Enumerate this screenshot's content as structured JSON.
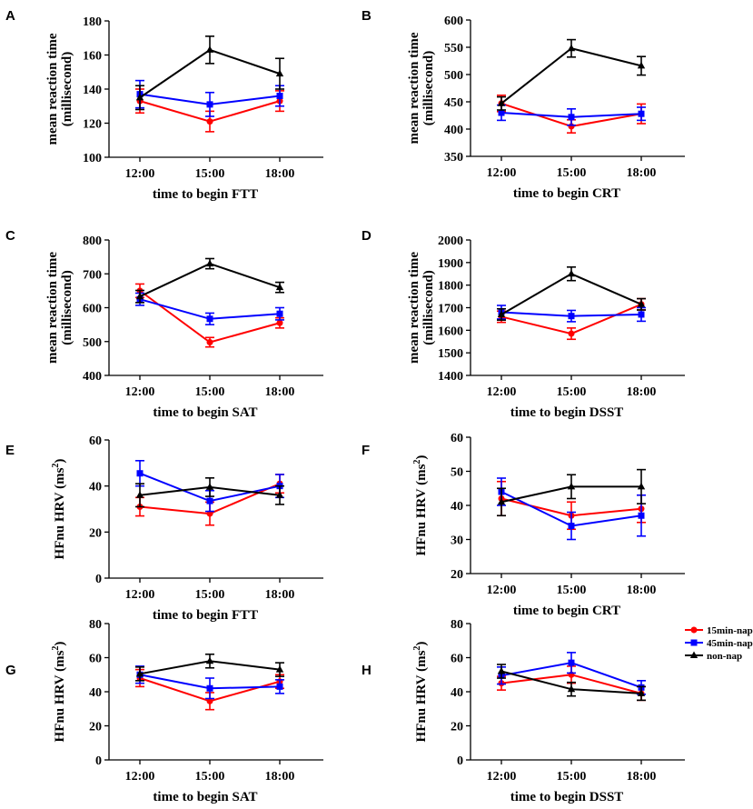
{
  "series_style": [
    {
      "name": "15min-nap",
      "color": "#ff0000",
      "marker": "circle"
    },
    {
      "name": "45min-nap",
      "color": "#0000ff",
      "marker": "square"
    },
    {
      "name": "non-nap",
      "color": "#000000",
      "marker": "triangle"
    }
  ],
  "chart_data": [
    {
      "panel": "A",
      "type": "line",
      "title": "",
      "categories": [
        "12:00",
        "15:00",
        "18:00"
      ],
      "xlabel": "time to begin FTT",
      "ylabel": [
        "mean reaction time",
        "(millisecond)"
      ],
      "ylim": [
        100,
        180
      ],
      "yticks": [
        100,
        120,
        140,
        160,
        180
      ],
      "series": [
        {
          "name": "15min-nap",
          "values": [
            133,
            121,
            133
          ],
          "errors": [
            7,
            6,
            6
          ]
        },
        {
          "name": "45min-nap",
          "values": [
            137,
            131,
            136
          ],
          "errors": [
            8,
            7,
            6
          ]
        },
        {
          "name": "non-nap",
          "values": [
            135,
            163,
            149
          ],
          "errors": [
            7,
            8,
            9
          ]
        }
      ]
    },
    {
      "panel": "B",
      "type": "line",
      "title": "",
      "categories": [
        "12:00",
        "15:00",
        "18:00"
      ],
      "xlabel": "time to begin CRT",
      "ylabel": [
        "mean reaction time",
        "(millisecond)"
      ],
      "ylim": [
        350,
        600
      ],
      "yticks": [
        350,
        400,
        450,
        500,
        550,
        600
      ],
      "series": [
        {
          "name": "15min-nap",
          "values": [
            447,
            405,
            428
          ],
          "errors": [
            15,
            12,
            18
          ]
        },
        {
          "name": "45min-nap",
          "values": [
            430,
            422,
            428
          ],
          "errors": [
            14,
            15,
            12
          ]
        },
        {
          "name": "non-nap",
          "values": [
            447,
            548,
            516
          ],
          "errors": [
            12,
            16,
            17
          ]
        }
      ]
    },
    {
      "panel": "C",
      "type": "line",
      "title": "",
      "categories": [
        "12:00",
        "15:00",
        "18:00"
      ],
      "xlabel": "time to begin SAT",
      "ylabel": [
        "mean reaction time",
        "(millisecond)"
      ],
      "ylim": [
        400,
        800
      ],
      "yticks": [
        400,
        500,
        600,
        700,
        800
      ],
      "series": [
        {
          "name": "15min-nap",
          "values": [
            650,
            498,
            555
          ],
          "errors": [
            20,
            14,
            15
          ]
        },
        {
          "name": "45min-nap",
          "values": [
            625,
            567,
            582
          ],
          "errors": [
            18,
            17,
            18
          ]
        },
        {
          "name": "non-nap",
          "values": [
            633,
            730,
            660
          ],
          "errors": [
            18,
            15,
            15
          ]
        }
      ]
    },
    {
      "panel": "D",
      "type": "line",
      "title": "",
      "categories": [
        "12:00",
        "15:00",
        "18:00"
      ],
      "xlabel": "time to begin DSST",
      "ylabel": [
        "mean reaction time",
        "(millisecond)"
      ],
      "ylim": [
        1400,
        2000
      ],
      "yticks": [
        1400,
        1500,
        1600,
        1700,
        1800,
        1900,
        2000
      ],
      "series": [
        {
          "name": "15min-nap",
          "values": [
            1660,
            1585,
            1715
          ],
          "errors": [
            25,
            25,
            25
          ]
        },
        {
          "name": "45min-nap",
          "values": [
            1680,
            1663,
            1670
          ],
          "errors": [
            30,
            25,
            30
          ]
        },
        {
          "name": "non-nap",
          "values": [
            1670,
            1850,
            1715
          ],
          "errors": [
            25,
            30,
            25
          ]
        }
      ]
    },
    {
      "panel": "E",
      "type": "line",
      "title": "",
      "categories": [
        "12:00",
        "15:00",
        "18:00"
      ],
      "xlabel": "time to begin FTT",
      "ylabel": [
        "HFnu HRV (ms",
        "2",
        ")"
      ],
      "ylim": [
        0,
        60
      ],
      "yticks": [
        0,
        20,
        40,
        60
      ],
      "series": [
        {
          "name": "15min-nap",
          "values": [
            31,
            28,
            41
          ],
          "errors": [
            4,
            5,
            4
          ]
        },
        {
          "name": "45min-nap",
          "values": [
            45.5,
            33.5,
            40
          ],
          "errors": [
            5.5,
            4.5,
            5
          ]
        },
        {
          "name": "non-nap",
          "values": [
            36,
            39.5,
            36
          ],
          "errors": [
            5,
            4,
            4
          ]
        }
      ]
    },
    {
      "panel": "F",
      "type": "line",
      "title": "",
      "categories": [
        "12:00",
        "15:00",
        "18:00"
      ],
      "xlabel": "time to begin CRT",
      "ylabel": [
        "HFnu HRV (ms",
        "2",
        ")"
      ],
      "ylim": [
        20,
        60
      ],
      "yticks": [
        20,
        30,
        40,
        50,
        60
      ],
      "series": [
        {
          "name": "15min-nap",
          "values": [
            42,
            37,
            39
          ],
          "errors": [
            5,
            4,
            4
          ]
        },
        {
          "name": "45min-nap",
          "values": [
            44,
            34,
            37
          ],
          "errors": [
            4,
            4,
            6
          ]
        },
        {
          "name": "non-nap",
          "values": [
            41,
            45.5,
            45.5
          ],
          "errors": [
            4,
            3.5,
            5
          ]
        }
      ]
    },
    {
      "panel": "G",
      "type": "line",
      "title": "",
      "categories": [
        "12:00",
        "15:00",
        "18:00"
      ],
      "xlabel": "time to begin SAT",
      "ylabel": [
        "HFnu HRV (ms",
        "2",
        ")"
      ],
      "ylim": [
        0,
        80
      ],
      "yticks": [
        0,
        20,
        40,
        60,
        80
      ],
      "series": [
        {
          "name": "15min-nap",
          "values": [
            48,
            34.5,
            46
          ],
          "errors": [
            5,
            5,
            4
          ]
        },
        {
          "name": "45min-nap",
          "values": [
            50,
            42,
            43
          ],
          "errors": [
            5,
            6,
            4
          ]
        },
        {
          "name": "non-nap",
          "values": [
            50.5,
            58,
            53
          ],
          "errors": [
            4,
            4,
            4
          ]
        }
      ]
    },
    {
      "panel": "H",
      "type": "line",
      "title": "",
      "categories": [
        "12:00",
        "15:00",
        "18:00"
      ],
      "xlabel": "time to begin DSST",
      "ylabel": [
        "HFnu HRV (ms",
        "2",
        ")"
      ],
      "ylim": [
        0,
        80
      ],
      "yticks": [
        0,
        20,
        40,
        60,
        80
      ],
      "series": [
        {
          "name": "15min-nap",
          "values": [
            45,
            50,
            39
          ],
          "errors": [
            4,
            5,
            4
          ]
        },
        {
          "name": "45min-nap",
          "values": [
            49.5,
            57,
            42.5
          ],
          "errors": [
            5,
            6,
            4
          ]
        },
        {
          "name": "non-nap",
          "values": [
            52,
            41.5,
            39
          ],
          "errors": [
            4,
            4,
            4
          ]
        }
      ]
    }
  ]
}
